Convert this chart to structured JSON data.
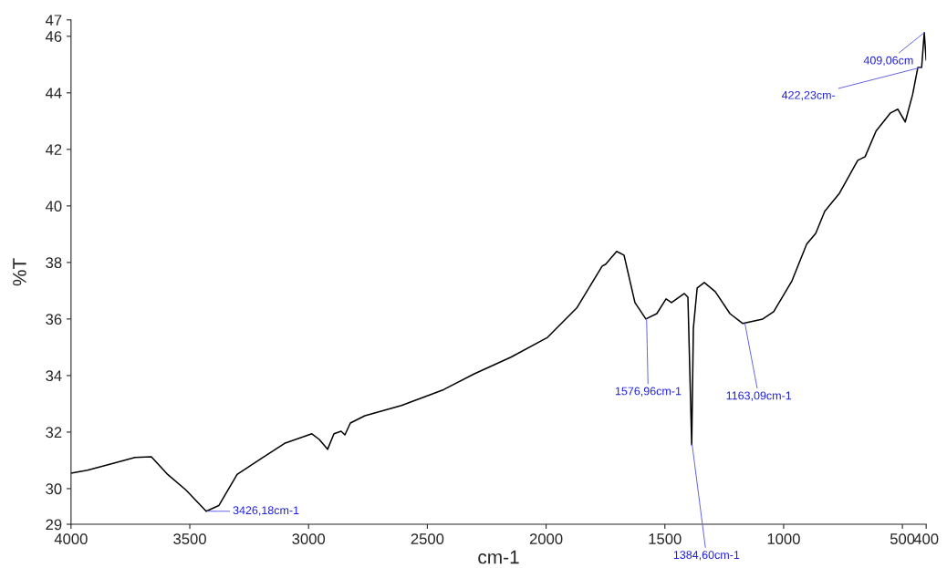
{
  "chart_data": {
    "type": "line",
    "xlabel": "cm-1",
    "ylabel": "%T",
    "xlim": [
      4000,
      400
    ],
    "xticks": [
      4000,
      3500,
      3000,
      2500,
      2000,
      1500,
      1000,
      500,
      400
    ],
    "ylim": [
      28.74,
      46.58
    ],
    "yticks": [
      {
        "value": 28.74,
        "label": "29"
      },
      30,
      32,
      34,
      36,
      38,
      40,
      42,
      44,
      46,
      {
        "value": 46.58,
        "label": "47"
      }
    ],
    "grid": false,
    "marker": "none",
    "line_style": "solid",
    "series": [
      {
        "color": "#000000",
        "x": [
          4000,
          3931,
          3731,
          3662,
          3593,
          3516,
          3431,
          3378,
          3301,
          3193,
          3101,
          2986,
          2955,
          2920,
          2893,
          2863,
          2847,
          2824,
          2763,
          2609,
          2432,
          2302,
          2148,
          1994,
          1871,
          1764,
          1749,
          1703,
          1672,
          1626,
          1580,
          1534,
          1495,
          1472,
          1418,
          1403,
          1387,
          1380,
          1364,
          1334,
          1288,
          1226,
          1172,
          1088,
          1042,
          965,
          903,
          865,
          827,
          765,
          688,
          657,
          611,
          550,
          519,
          488,
          457,
          435,
          419,
          408,
          400
        ],
        "values": [
          30.55,
          30.65,
          31.1,
          31.13,
          30.5,
          29.95,
          29.2,
          29.4,
          30.5,
          31.1,
          31.6,
          31.94,
          31.74,
          31.39,
          31.94,
          32.03,
          31.9,
          32.32,
          32.58,
          32.94,
          33.5,
          34.06,
          34.65,
          35.35,
          36.39,
          37.87,
          37.94,
          38.39,
          38.26,
          36.58,
          36.0,
          36.19,
          36.71,
          36.58,
          36.9,
          36.77,
          31.55,
          35.68,
          37.1,
          37.29,
          36.97,
          36.19,
          35.84,
          36.0,
          36.26,
          37.35,
          38.65,
          39.03,
          39.81,
          40.45,
          41.61,
          41.74,
          42.65,
          43.29,
          43.42,
          42.97,
          43.94,
          44.9,
          44.9,
          46.13,
          45.16
        ]
      }
    ],
    "annotations": [
      {
        "text": "3426,18cm-1",
        "x": 3426,
        "y": 29.2
      },
      {
        "text": "1576,96cm-1",
        "x": 1577,
        "y": 36.0
      },
      {
        "text": "1384,60cm-1",
        "x": 1385,
        "y": 31.55
      },
      {
        "text": "1163,09cm-1",
        "x": 1163,
        "y": 35.84
      },
      {
        "text": "409,06cm",
        "x": 408,
        "y": 46.13
      },
      {
        "text": "422,23cm-",
        "x": 422,
        "y": 44.9
      }
    ]
  }
}
